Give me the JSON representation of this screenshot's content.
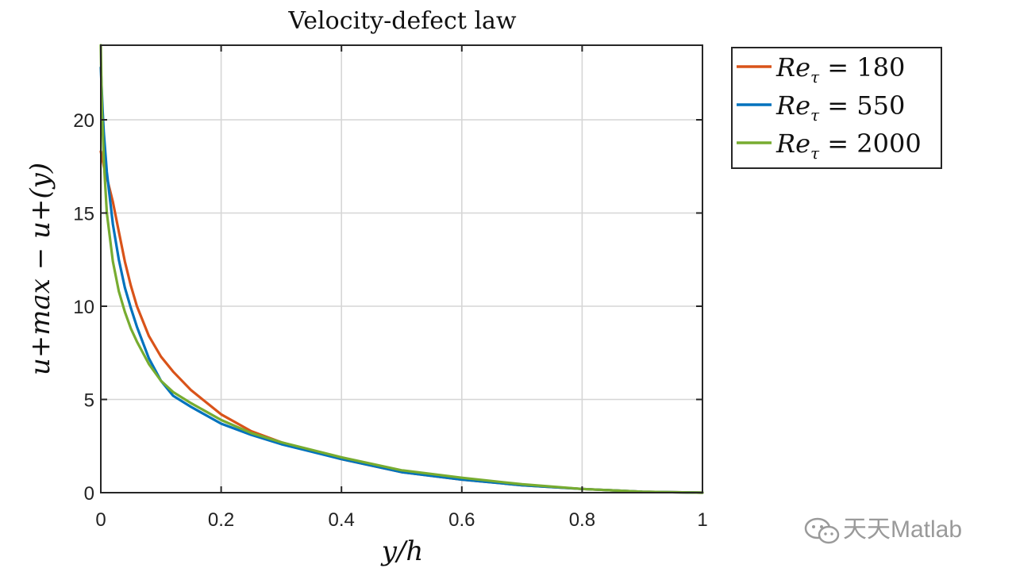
{
  "chart_data": {
    "type": "line",
    "title": "Velocity-defect law",
    "xlabel": "y/h",
    "ylabel": "u+max − u+(y)",
    "xlim": [
      0,
      1
    ],
    "ylim": [
      0,
      24
    ],
    "xticks": [
      0,
      0.2,
      0.4,
      0.6,
      0.8,
      1
    ],
    "xtick_labels": [
      "0",
      "0.2",
      "0.4",
      "0.6",
      "0.8",
      "1"
    ],
    "yticks": [
      0,
      5,
      10,
      15,
      20
    ],
    "ytick_labels": [
      "0",
      "5",
      "10",
      "15",
      "20"
    ],
    "grid": true,
    "legend_position": "outside-top-right",
    "series": [
      {
        "name": "Reτ = 180",
        "legend_text": "Re",
        "legend_sub": "τ",
        "legend_value": " = 180",
        "color": "#D95319",
        "x": [
          0,
          0.005,
          0.01,
          0.02,
          0.03,
          0.04,
          0.05,
          0.06,
          0.08,
          0.1,
          0.12,
          0.15,
          0.2,
          0.25,
          0.3,
          0.4,
          0.5,
          0.6,
          0.7,
          0.8,
          0.9,
          1.0
        ],
        "y": [
          18.3,
          17.5,
          16.9,
          15.6,
          14.0,
          12.4,
          11.1,
          10.0,
          8.4,
          7.3,
          6.5,
          5.5,
          4.2,
          3.3,
          2.7,
          1.8,
          1.1,
          0.7,
          0.4,
          0.2,
          0.05,
          0
        ]
      },
      {
        "name": "Reτ = 550",
        "legend_text": "Re",
        "legend_sub": "τ",
        "legend_value": " = 550",
        "color": "#0072BD",
        "x": [
          0,
          0.003,
          0.005,
          0.01,
          0.02,
          0.03,
          0.04,
          0.05,
          0.06,
          0.08,
          0.1,
          0.12,
          0.15,
          0.2,
          0.25,
          0.3,
          0.4,
          0.5,
          0.6,
          0.7,
          0.8,
          0.9,
          1.0
        ],
        "y": [
          22.8,
          20.5,
          19.3,
          17.2,
          14.4,
          12.5,
          11.0,
          9.9,
          8.9,
          7.2,
          6.0,
          5.2,
          4.6,
          3.7,
          3.1,
          2.6,
          1.8,
          1.1,
          0.7,
          0.4,
          0.2,
          0.05,
          0
        ]
      },
      {
        "name": "Reτ = 2000",
        "legend_text": "Re",
        "legend_sub": "τ",
        "legend_value": " = 2000",
        "color": "#77AC30",
        "x": [
          0,
          0.001,
          0.002,
          0.005,
          0.01,
          0.02,
          0.03,
          0.04,
          0.05,
          0.06,
          0.08,
          0.1,
          0.12,
          0.15,
          0.2,
          0.25,
          0.3,
          0.4,
          0.5,
          0.6,
          0.7,
          0.8,
          0.9,
          1.0
        ],
        "y": [
          24.0,
          22.0,
          20.5,
          17.8,
          15.0,
          12.4,
          10.8,
          9.7,
          8.8,
          8.1,
          6.9,
          6.0,
          5.4,
          4.8,
          3.9,
          3.2,
          2.7,
          1.9,
          1.2,
          0.8,
          0.45,
          0.2,
          0.05,
          0
        ]
      }
    ]
  },
  "watermark": {
    "text": "天天Matlab",
    "icon": "wechat-icon"
  }
}
